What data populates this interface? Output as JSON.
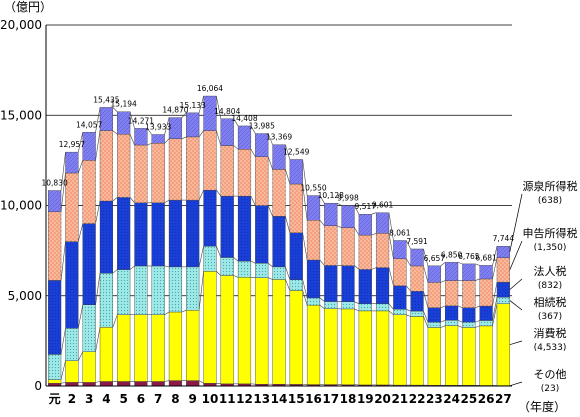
{
  "chart_data": {
    "type": "bar",
    "stacked": true,
    "y_unit": "（億円）",
    "x_unit": "（年度）",
    "ylim": [
      0,
      20000
    ],
    "yticks": [
      0,
      5000,
      10000,
      15000,
      20000
    ],
    "ytick_labels": [
      "0",
      "5,000",
      "10,000",
      "15,000",
      "20,000"
    ],
    "grid": true,
    "categories": [
      "元",
      "2",
      "3",
      "4",
      "5",
      "6",
      "7",
      "8",
      "9",
      "10",
      "11",
      "12",
      "13",
      "14",
      "15",
      "16",
      "17",
      "18",
      "19",
      "20",
      "21",
      "22",
      "23",
      "24",
      "25",
      "26",
      "27"
    ],
    "totals": [
      10830,
      12957,
      14057,
      15435,
      15194,
      14271,
      13933,
      14870,
      15133,
      16064,
      14804,
      14408,
      13985,
      13369,
      12549,
      10550,
      10128,
      9998,
      9517,
      9601,
      8061,
      7591,
      6657,
      6850,
      6765,
      6681,
      7744
    ],
    "total_labels": [
      "10,830",
      "12,957",
      "14,057",
      "15,435",
      "15,194",
      "14,271",
      "13,933",
      "14,870",
      "15,133",
      "16,064",
      "14,804",
      "14,408",
      "13,985",
      "13,369",
      "12,549",
      "10,550",
      "10,128",
      "9,998",
      "9,517",
      "9,601",
      "8,061",
      "7,591",
      "6,657",
      "6,850",
      "6,765",
      "6,681",
      "7,744"
    ],
    "series": [
      {
        "name": "その他",
        "value_label": "(23)",
        "color": "#8b1a4a",
        "values": [
          150,
          200,
          200,
          250,
          250,
          250,
          250,
          300,
          300,
          150,
          120,
          120,
          100,
          100,
          90,
          80,
          80,
          70,
          60,
          60,
          50,
          50,
          40,
          40,
          40,
          30,
          23
        ]
      },
      {
        "name": "消費税",
        "value_label": "(4,533)",
        "color": "#ffff00",
        "values": [
          200,
          1200,
          1700,
          3000,
          3700,
          3700,
          3700,
          3800,
          3900,
          6200,
          6000,
          5900,
          5900,
          5800,
          5200,
          4400,
          4200,
          4200,
          4100,
          4100,
          3900,
          3800,
          3200,
          3300,
          3200,
          3300,
          4533
        ]
      },
      {
        "name": "相続税",
        "value_label": "(367)",
        "color": "#9ee8e8",
        "values": [
          1400,
          1800,
          2600,
          3000,
          2500,
          2700,
          2700,
          2500,
          2400,
          1400,
          1000,
          900,
          800,
          700,
          600,
          400,
          400,
          400,
          400,
          400,
          300,
          300,
          300,
          300,
          300,
          300,
          367
        ]
      },
      {
        "name": "法人税",
        "value_label": "(832)",
        "color": "#1840d8",
        "values": [
          4100,
          4800,
          4500,
          4000,
          4000,
          3500,
          3500,
          3700,
          3700,
          3100,
          3400,
          3600,
          3200,
          2800,
          2600,
          2100,
          2000,
          2000,
          1900,
          2000,
          1300,
          1100,
          800,
          800,
          800,
          800,
          832
        ]
      },
      {
        "name": "申告所得税",
        "value_label": "(1,350)",
        "color": "#f4a07c",
        "values": [
          3800,
          3800,
          3500,
          3900,
          3500,
          3200,
          3300,
          3400,
          3500,
          3300,
          2800,
          2600,
          2700,
          2600,
          2700,
          2200,
          2200,
          2100,
          1900,
          1900,
          1500,
          1400,
          1400,
          1400,
          1500,
          1500,
          1350
        ]
      },
      {
        "name": "源泉所得税",
        "value_label": "(638)",
        "color": "#7f7ff2",
        "values": [
          1180,
          1157,
          1557,
          1285,
          1244,
          921,
          483,
          1170,
          1333,
          1914,
          1484,
          1288,
          1285,
          1369,
          1359,
          1370,
          1248,
          1228,
          1157,
          1141,
          1011,
          941,
          917,
          1010,
          925,
          751,
          638
        ]
      }
    ]
  }
}
